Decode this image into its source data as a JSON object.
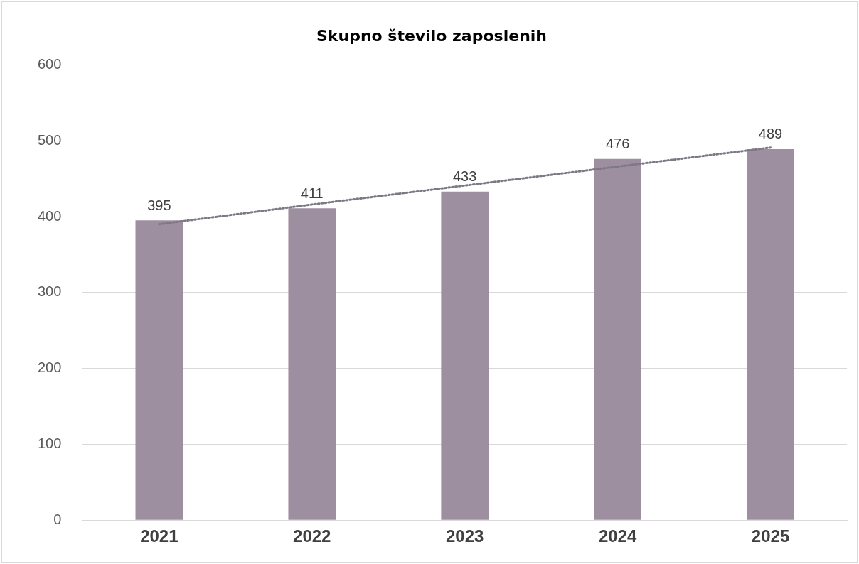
{
  "chart_data": {
    "type": "bar",
    "title": "Skupno število zaposlenih",
    "categories": [
      "2021",
      "2022",
      "2023",
      "2024",
      "2025"
    ],
    "series": [
      {
        "color": "#9e8fa0",
        "values": [
          395,
          411,
          433,
          476,
          489
        ],
        "value_labels": [
          "395",
          "411",
          "433",
          "476",
          "489"
        ]
      },
      {
        "type": "line",
        "color": "#7e7884",
        "line_style": "dotted",
        "marker": "none",
        "values": [
          390,
          416,
          441,
          466,
          491
        ]
      }
    ],
    "ylim": [
      0,
      600
    ],
    "yticks": [
      0,
      100,
      200,
      300,
      400,
      500,
      600
    ],
    "grid": "y",
    "legend": false
  }
}
